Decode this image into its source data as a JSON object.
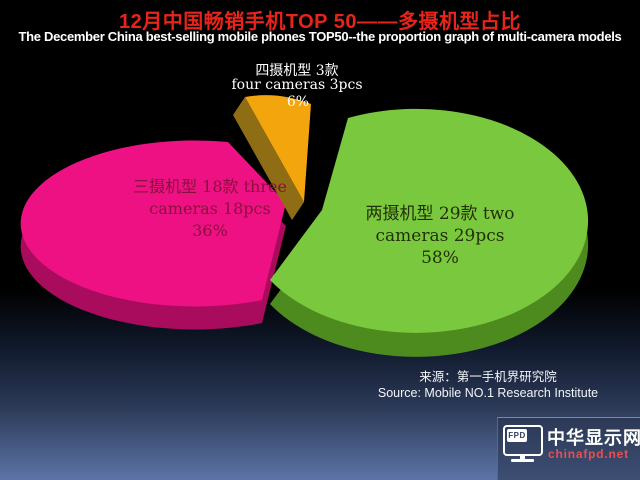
{
  "page": {
    "title": "12月中国畅销手机TOP 50——多摄机型占比",
    "title_color": "#e8231a",
    "subtitle": "The December China best-selling mobile phones TOP50--the proportion graph of multi-camera models",
    "source_line1": "来源：第一手机界研究院",
    "source_line2": "Source: Mobile NO.1 Research Institute"
  },
  "labels": {
    "two": {
      "line1": "两摄机型 29款 two",
      "line2": "cameras 29pcs",
      "pct": "58%"
    },
    "three": {
      "line1": "三摄机型 18款 three",
      "line2": "cameras 18pcs",
      "pct": "36%"
    },
    "four": {
      "line1": "四摄机型 3款",
      "line2": "four cameras 3pcs",
      "pct": "6%"
    }
  },
  "logo": {
    "fpd": "FPD",
    "name": "中华显示网",
    "url": "chinafpd.net",
    "url_color": "#e85050"
  },
  "chart_data": {
    "type": "pie",
    "title": "12月中国畅销手机TOP 50——多摄机型占比",
    "subtitle": "The December China best-selling mobile phones TOP50--the proportion graph of multi-camera models",
    "total_label": "TOP 50",
    "legend_position": "none",
    "style": "3d-exploded",
    "background": "black with blue gradient bottom",
    "slices": [
      {
        "label_cn": "两摄机型 29款",
        "label_en": "two cameras 29pcs",
        "value_pct": 58,
        "count": 29,
        "color": "#79c83e",
        "side_color": "#4e8b1f"
      },
      {
        "label_cn": "三摄机型 18款",
        "label_en": "three cameras 18pcs",
        "value_pct": 36,
        "count": 18,
        "color": "#ee1183",
        "side_color": "#a90c5c"
      },
      {
        "label_cn": "四摄机型 3款",
        "label_en": "four cameras 3pcs",
        "value_pct": 6,
        "count": 3,
        "color": "#f2a50c",
        "side_color": "#8f6d14"
      }
    ],
    "source": "来源：第一手机界研究院 / Source: Mobile NO.1 Research Institute"
  }
}
